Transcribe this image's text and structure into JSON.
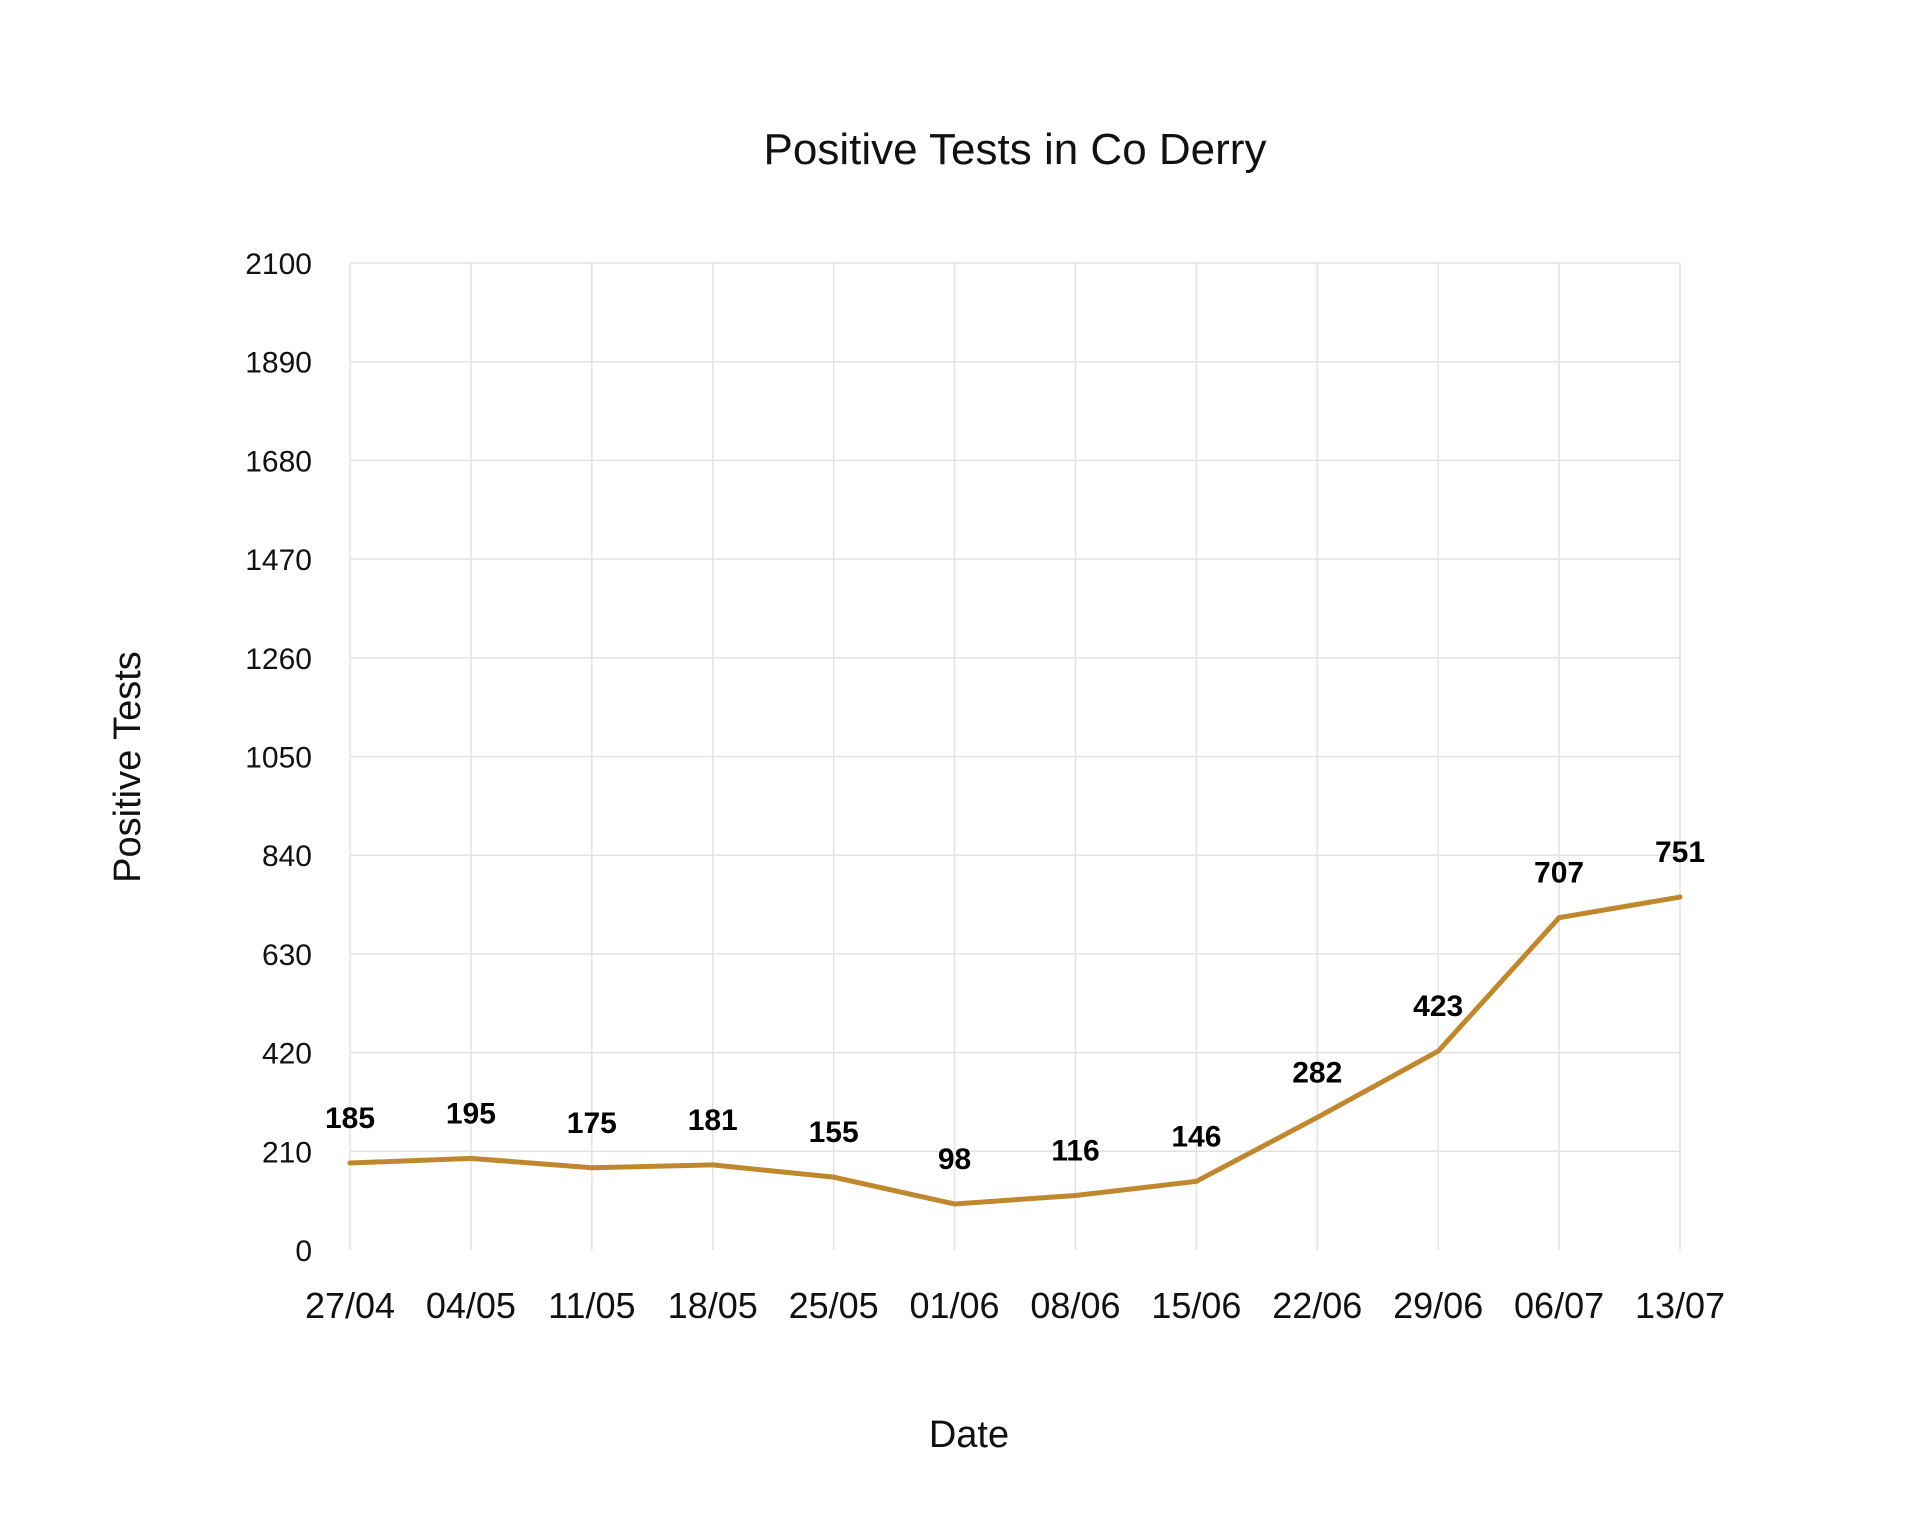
{
  "chart_data": {
    "type": "line",
    "title": "Positive Tests in Co Derry",
    "xlabel": "Date",
    "ylabel": "Positive Tests",
    "categories": [
      "27/04",
      "04/05",
      "11/05",
      "18/05",
      "25/05",
      "01/06",
      "08/06",
      "15/06",
      "22/06",
      "29/06",
      "06/07",
      "13/07"
    ],
    "series": [
      {
        "values": [
          185,
          195,
          175,
          181,
          155,
          98,
          116,
          146,
          282,
          423,
          707,
          751
        ],
        "color": "#c0882e"
      }
    ],
    "ylim": [
      0,
      2100
    ],
    "yticks": [
      0,
      210,
      420,
      630,
      840,
      1050,
      1260,
      1470,
      1680,
      1890,
      2100
    ],
    "grid": true,
    "data_labels": true,
    "legend": "none"
  }
}
